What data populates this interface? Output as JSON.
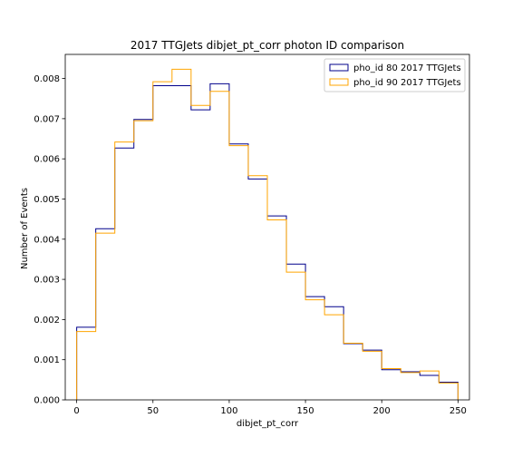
{
  "chart_data": {
    "type": "histogram-step",
    "title": "2017 TTGJets dibjet_pt_corr photon ID comparison",
    "xlabel": "dibjet_pt_corr",
    "ylabel": "Number of Events",
    "xlim": [
      -7.5,
      257.5
    ],
    "ylim": [
      0,
      0.0086
    ],
    "xticks": [
      0,
      50,
      100,
      150,
      200,
      250
    ],
    "yticks": [
      0.0,
      0.001,
      0.002,
      0.003,
      0.004,
      0.005,
      0.006,
      0.007,
      0.008
    ],
    "xtick_labels": [
      "0",
      "50",
      "100",
      "150",
      "200",
      "250"
    ],
    "ytick_labels": [
      "0.000",
      "0.001",
      "0.002",
      "0.003",
      "0.004",
      "0.005",
      "0.006",
      "0.007",
      "0.008"
    ],
    "bin_edges": [
      0,
      12.5,
      25,
      37.5,
      50,
      62.5,
      75,
      87.5,
      100,
      112.5,
      125,
      137.5,
      150,
      162.5,
      175,
      187.5,
      200,
      212.5,
      225,
      237.5,
      250
    ],
    "legend_position": "upper-right",
    "series": [
      {
        "name": "pho_id 80 2017 TTGJets",
        "color": "#00008b",
        "values": [
          0.00181,
          0.00426,
          0.00627,
          0.00698,
          0.00782,
          0.00782,
          0.00722,
          0.00787,
          0.00637,
          0.0055,
          0.00458,
          0.00338,
          0.00257,
          0.00232,
          0.0014,
          0.00124,
          0.00075,
          0.0007,
          0.00061,
          0.00044
        ]
      },
      {
        "name": "pho_id 90 2017 TTGJets",
        "color": "#ffa500",
        "values": [
          0.0017,
          0.00415,
          0.00642,
          0.00695,
          0.00792,
          0.00823,
          0.00733,
          0.00768,
          0.00633,
          0.00558,
          0.00448,
          0.00318,
          0.00249,
          0.00212,
          0.00141,
          0.00121,
          0.00078,
          0.00068,
          0.00072,
          0.00042
        ]
      }
    ]
  }
}
